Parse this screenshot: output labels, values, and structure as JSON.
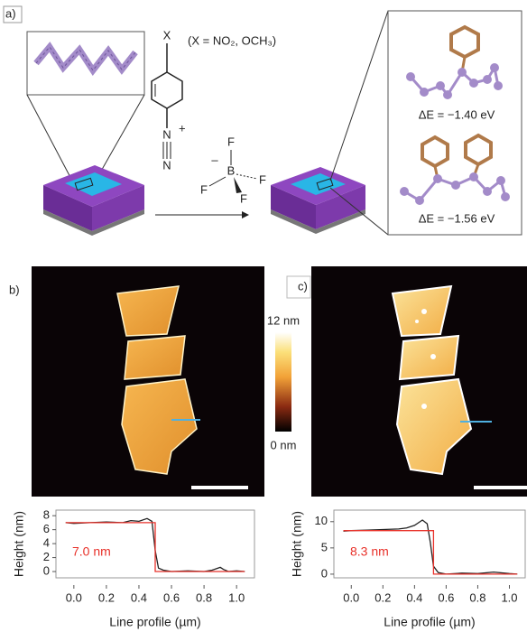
{
  "panel_a": {
    "label": "a)",
    "substituent": "X",
    "substituent_note": "(X = NO₂, OCH₃)",
    "diazonium_charge": "+",
    "diazonium_n1": "N",
    "diazonium_n2": "N",
    "anion": {
      "charge": "–",
      "center": "B",
      "f1": "F",
      "f2": "F",
      "f3": "F",
      "f4": "F"
    },
    "energies": [
      "ΔE = −1.40 eV",
      "ΔE = −1.56 eV"
    ]
  },
  "panel_b": {
    "label": "b)"
  },
  "panel_c": {
    "label": "c)"
  },
  "colorbar": {
    "max_label": "12 nm",
    "min_label": "0 nm"
  },
  "chart_data": [
    {
      "type": "line",
      "ylabel": "Height (nm)",
      "xlabel": "Line profile (µm)",
      "annotation": "7.0 nm",
      "xlim": [
        -0.11,
        1.11
      ],
      "ylim": [
        -0.9,
        8.8
      ],
      "xticks": [
        {
          "value": 0,
          "label": "0.0"
        },
        {
          "value": 0.2,
          "label": "0.2"
        },
        {
          "value": 0.4,
          "label": "0.4"
        },
        {
          "value": 0.6,
          "label": "0.6"
        },
        {
          "value": 0.8,
          "label": "0.8"
        },
        {
          "value": 1,
          "label": "1.0"
        }
      ],
      "yticks": [
        0,
        2,
        4,
        6,
        8
      ],
      "series": [
        {
          "color": "#222222",
          "x": [
            -0.05,
            0,
            0.1,
            0.2,
            0.3,
            0.35,
            0.4,
            0.45,
            0.48,
            0.5,
            0.52,
            0.55,
            0.6,
            0.7,
            0.8,
            0.85,
            0.9,
            0.92,
            0.95,
            1.0,
            1.05
          ],
          "values": [
            7,
            6.9,
            7,
            7.1,
            7,
            7.3,
            7.2,
            7.6,
            7.2,
            3,
            0.5,
            0.2,
            0,
            0.1,
            0,
            0.2,
            0.6,
            0.3,
            0,
            0.1,
            0
          ]
        },
        {
          "color": "#e8312a",
          "x": [
            -0.05,
            0.5,
            0.5,
            1.05
          ],
          "values": [
            7,
            7,
            0,
            0
          ]
        }
      ]
    },
    {
      "type": "line",
      "ylabel": "Height (nm)",
      "xlabel": "Line profile (µm)",
      "annotation": "8.3 nm",
      "xlim": [
        -0.11,
        1.1
      ],
      "ylim": [
        -0.7,
        12.2
      ],
      "xticks": [
        {
          "value": 0,
          "label": "0.0"
        },
        {
          "value": 0.2,
          "label": "0.2"
        },
        {
          "value": 0.4,
          "label": "0.4"
        },
        {
          "value": 0.6,
          "label": "0.6"
        },
        {
          "value": 0.8,
          "label": "0.8"
        },
        {
          "value": 1,
          "label": "1.0"
        }
      ],
      "yticks": [
        0,
        5,
        10
      ],
      "series": [
        {
          "color": "#222222",
          "x": [
            -0.05,
            0,
            0.1,
            0.2,
            0.3,
            0.35,
            0.4,
            0.45,
            0.48,
            0.5,
            0.52,
            0.55,
            0.6,
            0.7,
            0.8,
            0.9,
            1.0,
            1.05
          ],
          "values": [
            8.2,
            8.3,
            8.4,
            8.5,
            8.6,
            8.8,
            9.3,
            10.3,
            9.6,
            6,
            1.5,
            0.3,
            0,
            0.2,
            0.1,
            0.4,
            0.1,
            0
          ]
        },
        {
          "color": "#e8312a",
          "x": [
            -0.05,
            0.52,
            0.52,
            1.05
          ],
          "values": [
            8.3,
            8.3,
            0,
            0
          ]
        }
      ]
    }
  ]
}
